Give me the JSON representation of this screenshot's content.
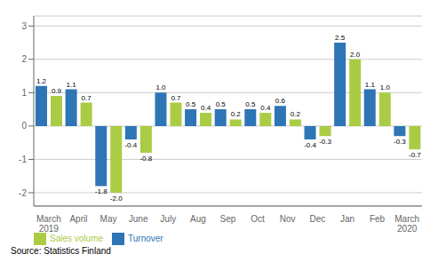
{
  "chart_data": {
    "type": "bar",
    "categories": [
      "March\n2019",
      "April",
      "May",
      "June",
      "July",
      "Aug",
      "Sep",
      "Oct",
      "Nov",
      "Dec",
      "Jan",
      "Feb",
      "March\n2020"
    ],
    "series": [
      {
        "name": "Turnover",
        "color": "#2E75B6",
        "values": [
          1.2,
          1.1,
          -1.8,
          -0.4,
          1.0,
          0.5,
          0.5,
          0.5,
          0.6,
          -0.4,
          2.5,
          1.1,
          -0.3
        ],
        "value_labels": [
          "1.2",
          "1.1",
          "-1.8",
          "-0.4",
          "1.0",
          "0.5",
          "0.5",
          "0.5",
          "0.6",
          "-0.4",
          "2.5",
          "1.1",
          "-0.3"
        ]
      },
      {
        "name": "Sales volume",
        "color": "#AACC44",
        "values": [
          0.9,
          0.7,
          -2.0,
          -0.8,
          0.7,
          0.4,
          0.2,
          0.4,
          0.2,
          -0.3,
          2.0,
          1.0,
          -0.7
        ],
        "value_labels": [
          "0.9",
          "0.7",
          "-2.0",
          "-0.8",
          "0.7",
          "0.4",
          "0.2",
          "0.4",
          "0.2",
          "-0.3",
          "2.0",
          "1.0",
          "-0.7"
        ]
      }
    ],
    "ylim": [
      -2.4,
      3.3
    ],
    "yticks": [
      -2,
      -1,
      0,
      1,
      2,
      3
    ],
    "grid": true,
    "legend": "lower left",
    "data_labels": true,
    "annotations": [
      "Source: Statistics Finland"
    ]
  }
}
